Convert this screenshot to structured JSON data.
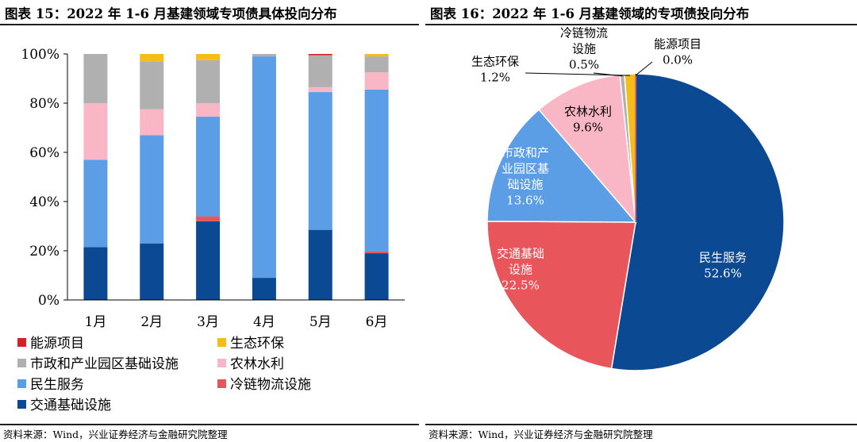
{
  "left": {
    "title": "图表 15：2022 年 1-6 月基建领域专项债具体投向分布",
    "source": "资料来源：Wind，兴业证券经济与金融研究院整理"
  },
  "right": {
    "title": "图表 16：2022 年 1-6 月基建领域的专项债投向分布",
    "source": "资料来源：Wind，兴业证券经济与金融研究院整理"
  },
  "chart_data": [
    {
      "type": "bar",
      "stacked": true,
      "categories": [
        "1月",
        "2月",
        "3月",
        "4月",
        "5月",
        "6月"
      ],
      "ylim": [
        0,
        100
      ],
      "yticks": [
        "0%",
        "20%",
        "40%",
        "60%",
        "80%",
        "100%"
      ],
      "grid": false,
      "legend_position": "bottom",
      "series": [
        {
          "name": "交通基础设施",
          "color": "#0b4a93",
          "values": [
            21.5,
            23,
            32,
            9,
            28.5,
            19
          ]
        },
        {
          "name": "冷链物流设施",
          "color": "#e8555a",
          "values": [
            0,
            0,
            2,
            0,
            0,
            0.7
          ]
        },
        {
          "name": "民生服务",
          "color": "#5b9ee6",
          "values": [
            35.5,
            44,
            40.5,
            90,
            56,
            65.8
          ]
        },
        {
          "name": "农林水利",
          "color": "#f9b7c6",
          "values": [
            23,
            10.5,
            5.5,
            0,
            2,
            7
          ]
        },
        {
          "name": "市政和产业园区基础设施",
          "color": "#b0b0b0",
          "values": [
            20,
            19.5,
            17.5,
            1,
            13,
            6.5
          ]
        },
        {
          "name": "生态环保",
          "color": "#f5bd1a",
          "values": [
            0,
            3,
            2.5,
            0,
            0,
            1
          ]
        },
        {
          "name": "能源项目",
          "color": "#d52027",
          "values": [
            0,
            0,
            0,
            0,
            0.5,
            0
          ]
        }
      ],
      "legend_order": [
        "能源项目",
        "生态环保",
        "市政和产业园区基础设施",
        "农林水利",
        "民生服务",
        "冷链物流设施",
        "交通基础设施"
      ]
    },
    {
      "type": "pie",
      "slices": [
        {
          "label": "民生服务",
          "value": 52.6,
          "text": "52.6%",
          "color": "#0b4a93",
          "label_color": "#ffffff",
          "label_lines": [
            "民生服务"
          ]
        },
        {
          "label": "交通基础设施",
          "value": 22.5,
          "text": "22.5%",
          "color": "#e8555a",
          "label_color": "#ffffff",
          "label_lines": [
            "交通基础",
            "设施"
          ]
        },
        {
          "label": "市政和产业园区基础设施",
          "value": 13.6,
          "text": "13.6%",
          "color": "#5b9ee6",
          "label_color": "#ffffff",
          "label_lines": [
            "市政和产",
            "业园区基",
            "础设施"
          ]
        },
        {
          "label": "农林水利",
          "value": 9.6,
          "text": "9.6%",
          "color": "#f9b7c6",
          "label_color": "#000000",
          "label_lines": [
            "农林水利"
          ]
        },
        {
          "label": "冷链物流设施",
          "value": 0.5,
          "text": "0.5%",
          "color": "#b0b0b0",
          "label_color": "#000000",
          "label_lines": [
            "冷链物流",
            "设施"
          ]
        },
        {
          "label": "生态环保",
          "value": 1.2,
          "text": "1.2%",
          "color": "#f5bd1a",
          "label_color": "#000000",
          "label_lines": [
            "生态环保"
          ]
        },
        {
          "label": "能源项目",
          "value": 0.0,
          "text": "0.0%",
          "color": "#d52027",
          "label_color": "#000000",
          "label_lines": [
            "能源项目"
          ]
        }
      ]
    }
  ]
}
